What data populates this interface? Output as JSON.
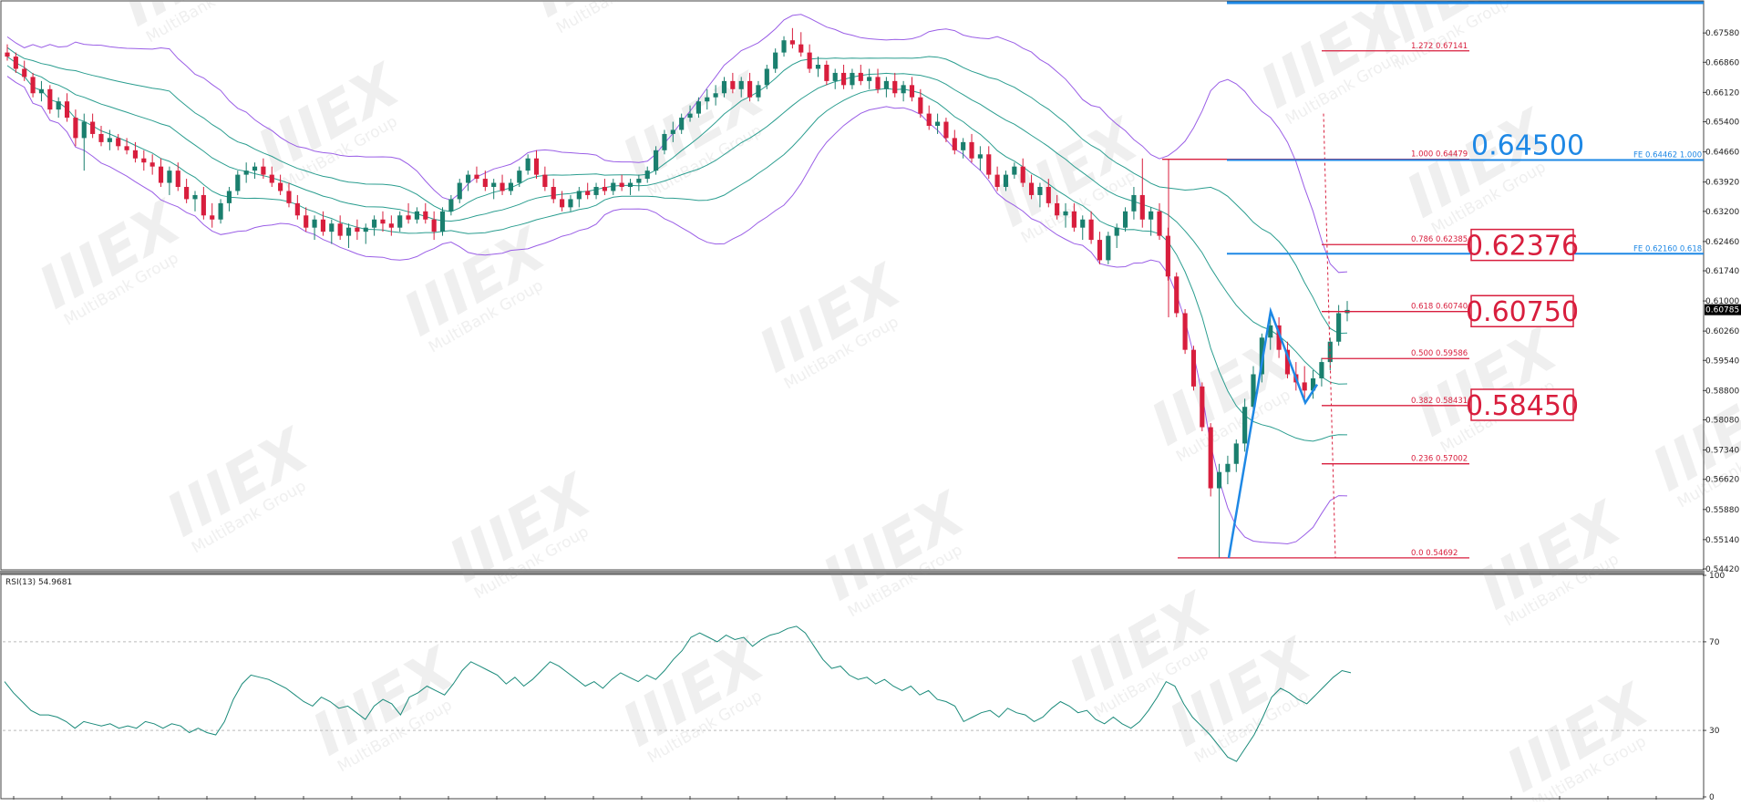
{
  "chart_data": [
    {
      "type": "candlestick",
      "title": "",
      "xlabel": "",
      "ylabel": "",
      "ylim": [
        0.5442,
        0.683
      ],
      "y_ticks": [
        "0.67580",
        "0.66860",
        "0.66120",
        "0.65400",
        "0.64660",
        "0.63920",
        "0.63200",
        "0.62460",
        "0.61740",
        "0.61000",
        "0.60260",
        "0.59540",
        "0.58800",
        "0.58080",
        "0.57340",
        "0.56620",
        "0.55880",
        "0.55140",
        "0.54420"
      ],
      "last_price": "0.60785",
      "indicators": [
        "Bollinger Bands (outer)",
        "Bollinger Bands (inner)"
      ],
      "colors": {
        "bull": "#1a7f6e",
        "bear": "#d81e3d",
        "band_inner": "#2a9d8f",
        "band_outer": "#9a5ee6",
        "fib": "#d81e3d",
        "fe": "#1e88e5"
      },
      "candles": [
        [
          0.671,
          0.673,
          0.669,
          0.67
        ],
        [
          0.67,
          0.671,
          0.666,
          0.667
        ],
        [
          0.667,
          0.669,
          0.664,
          0.665
        ],
        [
          0.665,
          0.666,
          0.66,
          0.661
        ],
        [
          0.661,
          0.664,
          0.659,
          0.662
        ],
        [
          0.662,
          0.663,
          0.656,
          0.657
        ],
        [
          0.657,
          0.66,
          0.655,
          0.659
        ],
        [
          0.659,
          0.661,
          0.654,
          0.655
        ],
        [
          0.655,
          0.657,
          0.648,
          0.65
        ],
        [
          0.65,
          0.656,
          0.642,
          0.654
        ],
        [
          0.654,
          0.656,
          0.65,
          0.651
        ],
        [
          0.651,
          0.653,
          0.648,
          0.649
        ],
        [
          0.649,
          0.652,
          0.647,
          0.65
        ],
        [
          0.65,
          0.651,
          0.647,
          0.648
        ],
        [
          0.648,
          0.65,
          0.646,
          0.647
        ],
        [
          0.647,
          0.649,
          0.644,
          0.645
        ],
        [
          0.645,
          0.647,
          0.642,
          0.644
        ],
        [
          0.644,
          0.646,
          0.641,
          0.643
        ],
        [
          0.643,
          0.645,
          0.638,
          0.639
        ],
        [
          0.639,
          0.643,
          0.636,
          0.642
        ],
        [
          0.642,
          0.644,
          0.637,
          0.638
        ],
        [
          0.638,
          0.64,
          0.634,
          0.635
        ],
        [
          0.635,
          0.637,
          0.632,
          0.636
        ],
        [
          0.636,
          0.638,
          0.63,
          0.631
        ],
        [
          0.631,
          0.634,
          0.628,
          0.63
        ],
        [
          0.63,
          0.635,
          0.629,
          0.634
        ],
        [
          0.634,
          0.638,
          0.632,
          0.637
        ],
        [
          0.637,
          0.642,
          0.636,
          0.641
        ],
        [
          0.641,
          0.644,
          0.639,
          0.642
        ],
        [
          0.642,
          0.644,
          0.64,
          0.643
        ],
        [
          0.643,
          0.645,
          0.64,
          0.641
        ],
        [
          0.641,
          0.643,
          0.638,
          0.639
        ],
        [
          0.639,
          0.641,
          0.636,
          0.637
        ],
        [
          0.637,
          0.639,
          0.633,
          0.634
        ],
        [
          0.634,
          0.636,
          0.63,
          0.631
        ],
        [
          0.631,
          0.633,
          0.627,
          0.628
        ],
        [
          0.628,
          0.631,
          0.625,
          0.63
        ],
        [
          0.63,
          0.632,
          0.626,
          0.627
        ],
        [
          0.627,
          0.63,
          0.624,
          0.629
        ],
        [
          0.629,
          0.631,
          0.625,
          0.626
        ],
        [
          0.626,
          0.629,
          0.623,
          0.628
        ],
        [
          0.628,
          0.63,
          0.625,
          0.627
        ],
        [
          0.627,
          0.629,
          0.624,
          0.628
        ],
        [
          0.628,
          0.631,
          0.626,
          0.63
        ],
        [
          0.63,
          0.632,
          0.627,
          0.629
        ],
        [
          0.629,
          0.631,
          0.626,
          0.628
        ],
        [
          0.628,
          0.632,
          0.627,
          0.631
        ],
        [
          0.631,
          0.634,
          0.629,
          0.63
        ],
        [
          0.63,
          0.633,
          0.629,
          0.632
        ],
        [
          0.632,
          0.634,
          0.629,
          0.63
        ],
        [
          0.63,
          0.632,
          0.625,
          0.627
        ],
        [
          0.627,
          0.633,
          0.626,
          0.632
        ],
        [
          0.632,
          0.636,
          0.631,
          0.635
        ],
        [
          0.635,
          0.64,
          0.634,
          0.639
        ],
        [
          0.639,
          0.642,
          0.637,
          0.641
        ],
        [
          0.641,
          0.643,
          0.639,
          0.64
        ],
        [
          0.64,
          0.642,
          0.637,
          0.638
        ],
        [
          0.638,
          0.64,
          0.635,
          0.639
        ],
        [
          0.639,
          0.641,
          0.636,
          0.637
        ],
        [
          0.637,
          0.64,
          0.636,
          0.639
        ],
        [
          0.639,
          0.643,
          0.638,
          0.642
        ],
        [
          0.642,
          0.646,
          0.641,
          0.645
        ],
        [
          0.645,
          0.647,
          0.64,
          0.641
        ],
        [
          0.641,
          0.643,
          0.637,
          0.638
        ],
        [
          0.638,
          0.64,
          0.634,
          0.635
        ],
        [
          0.635,
          0.637,
          0.632,
          0.633
        ],
        [
          0.633,
          0.636,
          0.632,
          0.635
        ],
        [
          0.635,
          0.638,
          0.633,
          0.637
        ],
        [
          0.637,
          0.639,
          0.635,
          0.636
        ],
        [
          0.636,
          0.639,
          0.635,
          0.638
        ],
        [
          0.638,
          0.64,
          0.636,
          0.637
        ],
        [
          0.637,
          0.64,
          0.636,
          0.639
        ],
        [
          0.639,
          0.641,
          0.637,
          0.638
        ],
        [
          0.638,
          0.64,
          0.636,
          0.639
        ],
        [
          0.639,
          0.641,
          0.637,
          0.64
        ],
        [
          0.64,
          0.643,
          0.639,
          0.642
        ],
        [
          0.642,
          0.648,
          0.641,
          0.647
        ],
        [
          0.647,
          0.652,
          0.646,
          0.651
        ],
        [
          0.651,
          0.654,
          0.649,
          0.652
        ],
        [
          0.652,
          0.656,
          0.651,
          0.655
        ],
        [
          0.655,
          0.658,
          0.654,
          0.656
        ],
        [
          0.656,
          0.66,
          0.655,
          0.659
        ],
        [
          0.659,
          0.662,
          0.657,
          0.66
        ],
        [
          0.66,
          0.663,
          0.658,
          0.661
        ],
        [
          0.661,
          0.665,
          0.66,
          0.664
        ],
        [
          0.664,
          0.666,
          0.661,
          0.662
        ],
        [
          0.662,
          0.665,
          0.66,
          0.664
        ],
        [
          0.664,
          0.666,
          0.659,
          0.66
        ],
        [
          0.66,
          0.664,
          0.659,
          0.663
        ],
        [
          0.663,
          0.668,
          0.662,
          0.667
        ],
        [
          0.667,
          0.672,
          0.666,
          0.671
        ],
        [
          0.671,
          0.675,
          0.67,
          0.674
        ],
        [
          0.674,
          0.677,
          0.672,
          0.673
        ],
        [
          0.673,
          0.676,
          0.67,
          0.671
        ],
        [
          0.671,
          0.673,
          0.666,
          0.667
        ],
        [
          0.667,
          0.67,
          0.665,
          0.668
        ],
        [
          0.668,
          0.669,
          0.663,
          0.664
        ],
        [
          0.664,
          0.667,
          0.662,
          0.666
        ],
        [
          0.666,
          0.668,
          0.662,
          0.663
        ],
        [
          0.663,
          0.667,
          0.662,
          0.666
        ],
        [
          0.666,
          0.668,
          0.663,
          0.664
        ],
        [
          0.664,
          0.667,
          0.662,
          0.665
        ],
        [
          0.665,
          0.667,
          0.661,
          0.662
        ],
        [
          0.662,
          0.665,
          0.66,
          0.664
        ],
        [
          0.664,
          0.666,
          0.66,
          0.661
        ],
        [
          0.661,
          0.664,
          0.659,
          0.663
        ],
        [
          0.663,
          0.665,
          0.659,
          0.66
        ],
        [
          0.66,
          0.662,
          0.655,
          0.656
        ],
        [
          0.656,
          0.658,
          0.652,
          0.653
        ],
        [
          0.653,
          0.656,
          0.651,
          0.654
        ],
        [
          0.654,
          0.655,
          0.649,
          0.65
        ],
        [
          0.65,
          0.652,
          0.646,
          0.647
        ],
        [
          0.647,
          0.65,
          0.645,
          0.649
        ],
        [
          0.649,
          0.651,
          0.644,
          0.645
        ],
        [
          0.645,
          0.648,
          0.642,
          0.646
        ],
        [
          0.646,
          0.648,
          0.64,
          0.641
        ],
        [
          0.641,
          0.643,
          0.637,
          0.638
        ],
        [
          0.638,
          0.642,
          0.637,
          0.641
        ],
        [
          0.641,
          0.644,
          0.64,
          0.643
        ],
        [
          0.643,
          0.645,
          0.638,
          0.639
        ],
        [
          0.639,
          0.641,
          0.635,
          0.636
        ],
        [
          0.636,
          0.639,
          0.633,
          0.638
        ],
        [
          0.638,
          0.64,
          0.633,
          0.634
        ],
        [
          0.634,
          0.636,
          0.63,
          0.631
        ],
        [
          0.631,
          0.634,
          0.628,
          0.632
        ],
        [
          0.632,
          0.634,
          0.627,
          0.628
        ],
        [
          0.628,
          0.631,
          0.625,
          0.63
        ],
        [
          0.63,
          0.632,
          0.624,
          0.625
        ],
        [
          0.625,
          0.627,
          0.619,
          0.62
        ],
        [
          0.62,
          0.627,
          0.619,
          0.626
        ],
        [
          0.626,
          0.629,
          0.623,
          0.628
        ],
        [
          0.628,
          0.633,
          0.627,
          0.632
        ],
        [
          0.632,
          0.638,
          0.63,
          0.636
        ],
        [
          0.636,
          0.645,
          0.628,
          0.63
        ],
        [
          0.63,
          0.633,
          0.626,
          0.632
        ],
        [
          0.632,
          0.634,
          0.625,
          0.626
        ],
        [
          0.626,
          0.628,
          0.615,
          0.616
        ],
        [
          0.616,
          0.617,
          0.606,
          0.607
        ],
        [
          0.607,
          0.608,
          0.597,
          0.598
        ],
        [
          0.598,
          0.599,
          0.588,
          0.589
        ],
        [
          0.589,
          0.59,
          0.578,
          0.579
        ],
        [
          0.579,
          0.58,
          0.562,
          0.564
        ],
        [
          0.564,
          0.57,
          0.547,
          0.568
        ],
        [
          0.568,
          0.572,
          0.565,
          0.57
        ],
        [
          0.57,
          0.576,
          0.568,
          0.575
        ],
        [
          0.575,
          0.586,
          0.573,
          0.584
        ],
        [
          0.584,
          0.594,
          0.582,
          0.592
        ],
        [
          0.592,
          0.602,
          0.59,
          0.601
        ],
        [
          0.601,
          0.607,
          0.598,
          0.604
        ],
        [
          0.604,
          0.606,
          0.596,
          0.598
        ],
        [
          0.598,
          0.6,
          0.591,
          0.592
        ],
        [
          0.592,
          0.595,
          0.588,
          0.59
        ],
        [
          0.59,
          0.594,
          0.586,
          0.588
        ],
        [
          0.588,
          0.593,
          0.586,
          0.591
        ],
        [
          0.591,
          0.596,
          0.589,
          0.595
        ],
        [
          0.595,
          0.601,
          0.593,
          0.6
        ],
        [
          0.6,
          0.609,
          0.599,
          0.607
        ],
        [
          0.607,
          0.61,
          0.605,
          0.6078
        ]
      ]
    },
    {
      "type": "line",
      "title": "RSI(13) 54.9681",
      "ylim": [
        0,
        100
      ],
      "y_ticks": [
        "100",
        "70",
        "30",
        "0"
      ],
      "levels": [
        70,
        30
      ],
      "color": "#1a8a7a",
      "values": [
        52,
        47,
        43,
        39,
        37,
        37,
        36,
        34,
        31,
        34,
        33,
        32,
        33,
        31,
        32,
        31,
        34,
        33,
        31,
        33,
        32,
        29,
        31,
        29,
        28,
        34,
        44,
        51,
        55,
        54,
        53,
        51,
        49,
        46,
        43,
        41,
        45,
        43,
        40,
        41,
        38,
        35,
        41,
        44,
        42,
        37,
        45,
        47,
        50,
        48,
        46,
        51,
        57,
        61,
        59,
        57,
        55,
        51,
        54,
        50,
        53,
        57,
        61,
        59,
        56,
        53,
        50,
        52,
        49,
        53,
        56,
        54,
        52,
        55,
        53,
        57,
        62,
        66,
        72,
        74,
        72,
        70,
        73,
        71,
        72,
        68,
        71,
        73,
        74,
        76,
        77,
        74,
        68,
        62,
        58,
        59,
        55,
        53,
        54,
        51,
        53,
        50,
        48,
        50,
        46,
        48,
        44,
        43,
        41,
        34,
        36,
        38,
        39,
        36,
        40,
        38,
        37,
        34,
        36,
        40,
        43,
        41,
        38,
        39,
        35,
        33,
        36,
        33,
        31,
        34,
        39,
        45,
        52,
        50,
        42,
        36,
        32,
        28,
        23,
        18,
        16,
        22,
        28,
        36,
        45,
        49,
        47,
        44,
        42,
        46,
        50,
        54,
        57,
        56
      ]
    }
  ],
  "fib_levels": [
    {
      "label": "1.272  0.67141",
      "value": 0.67141
    },
    {
      "label": "1.000  0.64479",
      "value": 0.64479
    },
    {
      "label": "0.786  0.62385",
      "value": 0.62385
    },
    {
      "label": "0.618  0.60740",
      "value": 0.6074
    },
    {
      "label": "0.500  0.59586",
      "value": 0.59586
    },
    {
      "label": "0.382  0.58431",
      "value": 0.58431
    },
    {
      "label": "0.236  0.57002",
      "value": 0.57002
    },
    {
      "label": "0.0  0.54692",
      "value": 0.54692
    }
  ],
  "fe_levels": [
    {
      "label": "FE 0.64462  1.000",
      "value": 0.64462
    },
    {
      "label": "FE 0.62160  0.618",
      "value": 0.6216
    }
  ],
  "callouts": [
    {
      "text": "0.64500",
      "value": 0.645,
      "style": "blue"
    },
    {
      "text": "0.62376",
      "value": 0.62376,
      "style": "boxed"
    },
    {
      "text": "0.60750",
      "value": 0.6075,
      "style": "boxed"
    },
    {
      "text": "0.58450",
      "value": 0.5845,
      "style": "boxed"
    }
  ],
  "watermark": {
    "brand": "IIIEX",
    "sub": "MultiBank Group"
  }
}
